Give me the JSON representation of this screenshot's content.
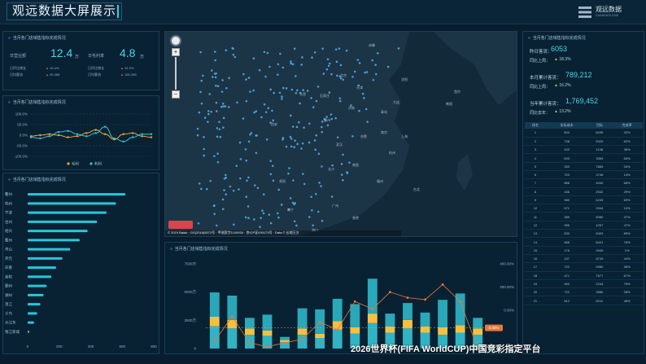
{
  "header": {
    "title": "观远数据大屏展示",
    "logo_text": "观远数据",
    "logo_sub": "GUANDATA.COM"
  },
  "kpi_panel": {
    "title": "当月各门店销售指标完成情况",
    "left": {
      "label": "日营业额",
      "value": "12.4",
      "unit": "万",
      "rows": [
        {
          "label": "日环比增长",
          "value": "10.4%"
        },
        {
          "label": "日均客流",
          "value": "90,368"
        }
      ]
    },
    "right": {
      "label": "日毛利率",
      "value": "4.8",
      "unit": "万",
      "rows": [
        {
          "label": "日环比增长",
          "value": "32.3%"
        },
        {
          "label": "日均客流",
          "value": "100,268"
        }
      ]
    }
  },
  "line_panel": {
    "title": "当月各门店销售指标完成情况"
  },
  "hbar_panel": {
    "title": "当月各门店销售指标完成情况"
  },
  "map_panel": {
    "attribution": "© 2019 Baidu · GS(2018)5572号 · 甲测资字1100930 · 京ICP证030173号 · Data © 长地万方",
    "zoom_plus": "+",
    "zoom_minus": "−",
    "map_labels": [
      "赤峰",
      "沈阳",
      "大连",
      "北京",
      "天津",
      "石家庄",
      "太原",
      "济南",
      "青岛",
      "郑州",
      "西安",
      "南京",
      "合肥",
      "武汉",
      "上海",
      "杭州",
      "长沙",
      "南昌",
      "福州",
      "贵阳",
      "南宁",
      "广州",
      "台北",
      "香港",
      "韩国",
      "首尔",
      "海口"
    ]
  },
  "bottom_panel": {
    "title": "当月各门店销售指标完成情况"
  },
  "right_panel": {
    "title": "当月各门店销售指标完成情况",
    "stats": [
      {
        "label": "昨日客流：",
        "value": "6053",
        "sub_label": "同比上周：",
        "sub_value": "18.3%"
      },
      {
        "label": "本月累计客流：",
        "value": "789,212",
        "sub_label": "同比上周：",
        "sub_value": "16.2%"
      },
      {
        "label": "当年累计客流：",
        "value": "1,769,452",
        "sub_label": "同比去年：",
        "sub_value": "13.2%"
      }
    ],
    "table": {
      "headers": [
        "排名",
        "实际成本",
        "目标",
        "完成率"
      ],
      "rows": [
        [
          "1",
          "604",
          "6035",
          "32%"
        ],
        [
          "2",
          "738",
          "5320",
          "62%"
        ],
        [
          "3",
          "100",
          "1108",
          "36%"
        ],
        [
          "4",
          "693",
          "3369",
          "84%"
        ],
        [
          "5",
          "333",
          "7889",
          "33%"
        ],
        [
          "6",
          "700",
          "3746",
          "14%"
        ],
        [
          "7",
          "866",
          "4040",
          "68%"
        ],
        [
          "8",
          "436",
          "2542",
          "29%"
        ],
        [
          "9",
          "980",
          "6235",
          "69%"
        ],
        [
          "10",
          "571",
          "2944",
          "10%"
        ],
        [
          "11",
          "389",
          "5080",
          "37%"
        ],
        [
          "12",
          "996",
          "4257",
          "47%"
        ],
        [
          "13",
          "830",
          "8409",
          "89%"
        ],
        [
          "14",
          "588",
          "8441",
          "76%"
        ],
        [
          "15",
          "176",
          "2945",
          "1%"
        ],
        [
          "16",
          "137",
          "8749",
          "44%"
        ],
        [
          "17",
          "722",
          "5980",
          "38%"
        ],
        [
          "18",
          "471",
          "7677",
          "67%"
        ],
        [
          "19",
          "453",
          "2244",
          "75%"
        ],
        [
          "20",
          "722",
          "3980",
          "38%"
        ],
        [
          "21",
          "512",
          "5211",
          "48%"
        ]
      ]
    }
  },
  "footer_text": "2026世界杯(FIFA WorldCUP)中国竞彩指定平台",
  "chart_data": [
    {
      "type": "line",
      "title": "当月各门店销售指标完成情况",
      "y_ticks": [
        "100.0%",
        "50.0%",
        "0.0%",
        "-50.0%",
        "-100.0%"
      ],
      "ylim": [
        -100,
        100
      ],
      "x": [
        0,
        1,
        2,
        3,
        4,
        5,
        6,
        7,
        8,
        9,
        10,
        11,
        12,
        13
      ],
      "series": [
        {
          "name": "毛利",
          "color": "#f0a43a",
          "values": [
            -5,
            0,
            5,
            0,
            -10,
            -5,
            10,
            25,
            5,
            -20,
            5,
            10,
            -5,
            -10
          ]
        },
        {
          "name": "利利",
          "color": "#33c4d6",
          "values": [
            -10,
            -15,
            -5,
            15,
            20,
            5,
            -5,
            10,
            40,
            -15,
            -30,
            -10,
            5,
            5
          ]
        }
      ],
      "legend": "bottom"
    },
    {
      "type": "bar",
      "orientation": "horizontal",
      "title": "当月各门店销售指标完成情况",
      "categories": [
        "衢州",
        "杭州",
        "宁波",
        "台州",
        "绍兴",
        "衢州",
        "舟山",
        "开元",
        "庆春",
        "余杭",
        "鄞州",
        "湖州",
        "温江",
        "义乌",
        "大江东",
        "钱江新城"
      ],
      "values": [
        620,
        560,
        500,
        440,
        380,
        330,
        270,
        220,
        180,
        150,
        120,
        100,
        80,
        60,
        40,
        10
      ],
      "x_ticks": [
        "0",
        "200",
        "400",
        "600",
        "800"
      ],
      "xlim": [
        0,
        800
      ]
    },
    {
      "type": "bar",
      "title": "当月各门店销售指标完成情况",
      "stacked": true,
      "y_ticks_left": [
        "7500万",
        "5000万",
        "2500万",
        "0"
      ],
      "y_ticks_right": [
        "400.00%",
        "200.00%",
        "0.00%"
      ],
      "categories": [
        "1",
        "2",
        "3",
        "4",
        "5",
        "6",
        "7",
        "8",
        "9",
        "10",
        "11",
        "12",
        "13",
        "14",
        "15",
        "16"
      ],
      "series": [
        {
          "name": "底部",
          "color": "#31b3c4",
          "values": [
            2100,
            1900,
            1300,
            1200,
            600,
            1300,
            1000,
            1800,
            1400,
            2400,
            1500,
            1900,
            1500,
            1300,
            1500,
            1300
          ]
        },
        {
          "name": "中部",
          "color": "#f2c044",
          "values": [
            900,
            800,
            600,
            500,
            200,
            600,
            400,
            800,
            600,
            900,
            600,
            800,
            600,
            700,
            700,
            600
          ]
        },
        {
          "name": "顶部",
          "color": "#2aa7b8",
          "values": [
            2300,
            2300,
            1000,
            1500,
            300,
            1900,
            2300,
            2100,
            2200,
            3300,
            1200,
            1600,
            1300,
            2600,
            3000,
            1000
          ]
        }
      ],
      "line": {
        "name": "完成率",
        "color": "#e8773a",
        "values": [
          40,
          170,
          30,
          10,
          30,
          50,
          140,
          100,
          250,
          210,
          300,
          270,
          260,
          340,
          250,
          0
        ]
      },
      "ylim": [
        0,
        8000
      ],
      "y2lim": [
        0,
        450
      ],
      "callout": "0.00%"
    }
  ]
}
